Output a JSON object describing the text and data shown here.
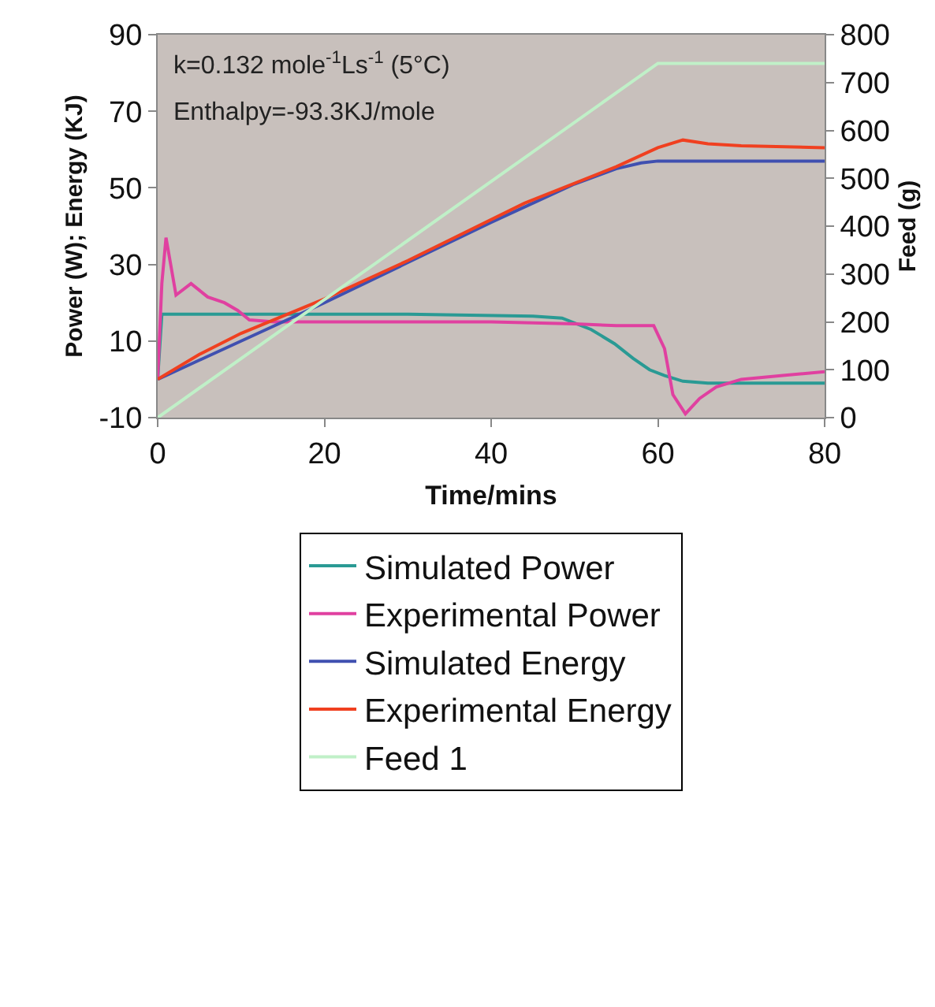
{
  "chart_data": {
    "type": "line",
    "xlabel": "Time/mins",
    "ylabel": "Power (W); Energy (KJ)",
    "y2label": "Feed (g)",
    "xlim": [
      0,
      80
    ],
    "xticks": [
      0,
      20,
      40,
      60,
      80
    ],
    "ylim": [
      -10,
      90
    ],
    "yticks": [
      -10,
      10,
      30,
      50,
      70,
      90
    ],
    "y2lim": [
      0,
      800
    ],
    "y2ticks": [
      0,
      100,
      200,
      300,
      400,
      500,
      600,
      700,
      800
    ],
    "grid": false,
    "legend": "bottom",
    "marker": "none",
    "line_style": "solid",
    "annotations": [
      "k=0.132 mole$^{-1}$Ls$^{-1}$ (5°C)",
      "Enthalpy=-93.3KJ/mole"
    ],
    "series": [
      {
        "name": "Simulated Power",
        "color": "#2a9a94",
        "x": [
          0,
          0.5,
          10,
          30,
          45,
          48.5,
          52,
          54.8,
          57,
          59,
          60.8,
          63,
          66,
          80
        ],
        "values": [
          0,
          17,
          17,
          17,
          16.5,
          16,
          13,
          9.3,
          5.5,
          2.5,
          1,
          -0.5,
          -1,
          -1
        ]
      },
      {
        "name": "Experimental Power",
        "color": "#e040a0",
        "x": [
          0,
          0.5,
          1,
          2.2,
          4,
          6,
          8,
          9.6,
          11,
          14,
          20,
          30,
          40,
          50,
          55,
          59.5,
          60.8,
          61.8,
          63.3,
          65,
          67,
          70,
          75,
          80
        ],
        "values": [
          0,
          25,
          37,
          22,
          25,
          21.5,
          20,
          18,
          15.5,
          15,
          15,
          15,
          15,
          14.5,
          14,
          14,
          8,
          -4,
          -9,
          -5,
          -2,
          0,
          1,
          2
        ]
      },
      {
        "name": "Simulated Energy",
        "color": "#4050b0",
        "x": [
          0,
          20,
          40,
          50,
          55,
          58,
          60,
          80
        ],
        "values": [
          0,
          20,
          41,
          51,
          55,
          56.5,
          57,
          57
        ]
      },
      {
        "name": "Experimental Energy",
        "color": "#f04020",
        "x": [
          0,
          5,
          10,
          20,
          30,
          44,
          55,
          60,
          63,
          66,
          70,
          80
        ],
        "values": [
          0,
          6.5,
          12,
          21,
          31,
          46,
          55.5,
          60.5,
          62.5,
          61.5,
          61,
          60.5
        ]
      },
      {
        "name": "Feed 1",
        "color": "#c0f0c8",
        "axis": "y2",
        "x": [
          0,
          60,
          80
        ],
        "values": [
          0,
          740,
          740
        ]
      }
    ]
  }
}
